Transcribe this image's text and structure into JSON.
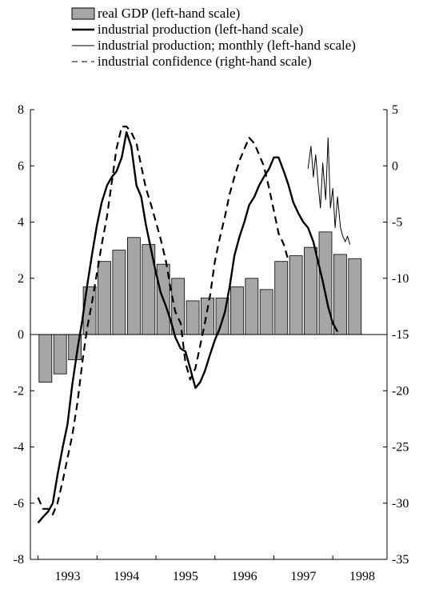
{
  "chart_data": {
    "type": "bar",
    "title": "",
    "xlabel": "",
    "ylabel": "",
    "legend_position": "top",
    "grid": false,
    "x_tick_labels": [
      "1993",
      "1994",
      "1995",
      "1996",
      "1997",
      "1998"
    ],
    "left_axis": {
      "ylim": [
        -8,
        8
      ],
      "ticks": [
        -8,
        -6,
        -4,
        -2,
        0,
        2,
        4,
        6,
        8
      ]
    },
    "right_axis": {
      "ylim": [
        -35,
        5
      ],
      "ticks": [
        -35,
        -30,
        -25,
        -20,
        -15,
        -10,
        -5,
        0,
        5
      ]
    },
    "legend": [
      {
        "label": "real GDP (left-hand scale)",
        "style": "bar"
      },
      {
        "label": "industrial production (left-hand scale)",
        "style": "thick"
      },
      {
        "label": "industrial production; monthly (left-hand scale)",
        "style": "thin"
      },
      {
        "label": "industrial confidence (right-hand scale)",
        "style": "dashed"
      }
    ],
    "series": [
      {
        "name": "real GDP (left-hand scale)",
        "kind": "bar",
        "axis": "left",
        "color": "#a6a6a6",
        "x": [
          1993.125,
          1993.375,
          1993.625,
          1993.875,
          1994.125,
          1994.375,
          1994.625,
          1994.875,
          1995.125,
          1995.375,
          1995.625,
          1995.875,
          1996.125,
          1996.375,
          1996.625,
          1996.875,
          1997.125,
          1997.375,
          1997.625,
          1997.875,
          1998.125,
          1998.375,
          1998.625
        ],
        "values": [
          -1.7,
          -1.4,
          -0.9,
          1.7,
          2.6,
          3.0,
          3.45,
          3.2,
          2.5,
          2.0,
          1.2,
          1.3,
          1.3,
          1.7,
          2.0,
          1.6,
          2.6,
          2.8,
          3.1,
          3.65,
          2.85,
          2.7,
          0
        ]
      },
      {
        "name": "industrial production (left-hand scale)",
        "kind": "line",
        "style": "thick",
        "axis": "left",
        "x": [
          1993.0,
          1993.08,
          1993.17,
          1993.25,
          1993.33,
          1993.42,
          1993.5,
          1993.58,
          1993.67,
          1993.75,
          1993.83,
          1993.92,
          1994.0,
          1994.08,
          1994.17,
          1994.25,
          1994.33,
          1994.42,
          1994.5,
          1994.58,
          1994.67,
          1994.75,
          1994.83,
          1994.92,
          1995.0,
          1995.08,
          1995.17,
          1995.25,
          1995.33,
          1995.42,
          1995.5,
          1995.58,
          1995.67,
          1995.75,
          1995.83,
          1995.92,
          1996.0,
          1996.08,
          1996.17,
          1996.25,
          1996.33,
          1996.42,
          1996.5,
          1996.58,
          1996.67,
          1996.75,
          1996.83,
          1996.92,
          1997.0,
          1997.08,
          1997.17,
          1997.25,
          1997.33,
          1997.42,
          1997.5,
          1997.58,
          1997.67,
          1997.75,
          1997.83,
          1997.92,
          1998.0,
          1998.08,
          1998.17,
          1998.25,
          1998.33,
          1998.42,
          1998.5,
          1998.58,
          1998.67,
          1998.75
        ],
        "values": [
          -6.7,
          -6.5,
          -6.3,
          -6.0,
          -5.0,
          -4.0,
          -3.2,
          -1.8,
          -0.5,
          0.5,
          1.7,
          2.9,
          3.9,
          4.7,
          5.3,
          5.6,
          5.8,
          6.3,
          7.2,
          6.7,
          5.3,
          4.9,
          3.9,
          3.0,
          2.2,
          1.5,
          1.0,
          0.5,
          -0.1,
          -0.5,
          -0.6,
          -1.2,
          -1.9,
          -1.7,
          -1.3,
          -0.7,
          -0.2,
          0.2,
          0.8,
          1.7,
          2.8,
          3.5,
          4.0,
          4.6,
          4.9,
          5.3,
          5.6,
          5.9,
          6.3,
          6.3,
          5.8,
          5.3,
          4.7,
          4.3,
          4.0,
          3.8,
          3.3,
          2.6,
          1.9,
          1.0,
          0.4,
          0.1,
          0.0,
          0.0,
          0.0,
          0.0,
          0.0,
          0.0,
          0.0,
          0.0
        ]
      },
      {
        "name": "industrial production; monthly (left-hand scale)",
        "kind": "line",
        "style": "thin",
        "axis": "left",
        "x": [
          1997.58,
          1997.63,
          1997.67,
          1997.71,
          1997.75,
          1997.79,
          1997.83,
          1997.88,
          1997.92,
          1997.96,
          1998.0,
          1998.04,
          1998.08,
          1998.13,
          1998.17,
          1998.21,
          1998.25,
          1998.29
        ],
        "values": [
          5.9,
          6.7,
          5.6,
          6.4,
          5.4,
          4.5,
          6.1,
          4.8,
          7.0,
          4.5,
          5.2,
          3.8,
          4.9,
          3.8,
          3.5,
          3.3,
          3.5,
          3.2
        ]
      },
      {
        "name": "industrial confidence (right-hand scale)",
        "kind": "line",
        "style": "dashed",
        "axis": "right",
        "x": [
          1993.0,
          1993.08,
          1993.17,
          1993.25,
          1993.33,
          1993.42,
          1993.5,
          1993.58,
          1993.67,
          1993.75,
          1993.83,
          1993.92,
          1994.0,
          1994.08,
          1994.17,
          1994.25,
          1994.33,
          1994.42,
          1994.5,
          1994.58,
          1994.67,
          1994.75,
          1994.83,
          1994.92,
          1995.0,
          1995.08,
          1995.17,
          1995.25,
          1995.33,
          1995.42,
          1995.5,
          1995.58,
          1995.67,
          1995.75,
          1995.83,
          1995.92,
          1996.0,
          1996.08,
          1996.17,
          1996.25,
          1996.33,
          1996.42,
          1996.5,
          1996.58,
          1996.67,
          1996.75,
          1996.83,
          1996.92,
          1997.0,
          1997.08,
          1997.17,
          1997.25,
          1997.33,
          1997.42,
          1997.5,
          1997.58,
          1997.67,
          1997.75,
          1997.83,
          1997.92,
          1998.0,
          1998.08,
          1998.17,
          1998.25,
          1998.33,
          1998.42,
          1998.5,
          1998.58,
          1998.67,
          1998.75
        ],
        "values": [
          -29.5,
          -30.5,
          -30.5,
          -31.0,
          -30.0,
          -28.0,
          -26.0,
          -24.0,
          -21.0,
          -17.5,
          -14.5,
          -12.0,
          -9.5,
          -7.0,
          -4.5,
          -1.5,
          1.5,
          3.5,
          3.5,
          3.0,
          2.0,
          0.0,
          -2.0,
          -3.5,
          -5.0,
          -6.5,
          -8.5,
          -11.0,
          -13.0,
          -14.0,
          -17.5,
          -19.0,
          -18.0,
          -16.0,
          -14.0,
          -11.5,
          -8.5,
          -6.5,
          -4.5,
          -2.5,
          -1.0,
          0.5,
          1.5,
          2.5,
          2.0,
          1.0,
          0.0,
          -2.0,
          -4.0,
          -6.0,
          -7.0,
          -8.5,
          0,
          0,
          0,
          0,
          0,
          0,
          0,
          0,
          0,
          0,
          0,
          0,
          0,
          0,
          0,
          0,
          0,
          0
        ]
      }
    ]
  }
}
